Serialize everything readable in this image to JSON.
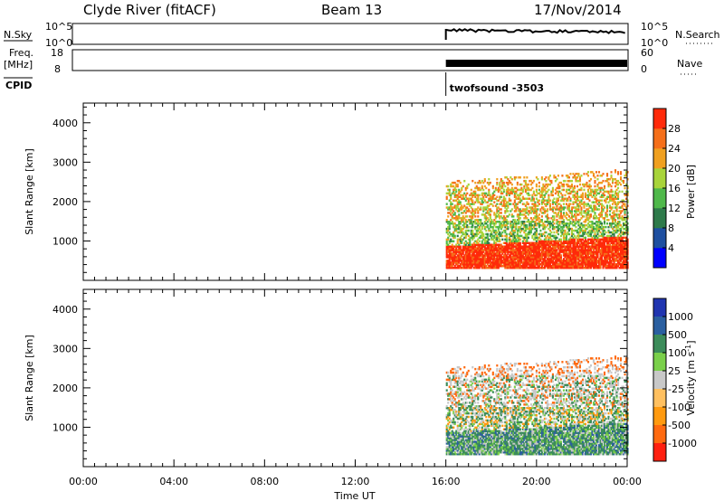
{
  "header": {
    "station": "Clyde River (fitACF)",
    "beam": "Beam 13",
    "date": "17/Nov/2014"
  },
  "panels": {
    "nsky": {
      "left_label": "N.Sky",
      "right_label": "N.Search",
      "left_ticks": [
        "10^5",
        "10^0"
      ],
      "right_ticks": [
        "10^5",
        "10^0"
      ]
    },
    "freq": {
      "left_label_1": "Freq.",
      "left_label_2": "[MHz]",
      "right_label": "Nave",
      "left_ticks": [
        "18",
        "8"
      ],
      "right_ticks": [
        "60",
        "0"
      ]
    },
    "cpid": {
      "label": "CPID",
      "program": "twofsound -3503"
    }
  },
  "colors": {
    "power_scale": [
      "#0000ff",
      "#1e4fa0",
      "#2e7a4a",
      "#4fb84a",
      "#a8d43a",
      "#f0a020",
      "#f56f1a",
      "#ff2a0a"
    ],
    "velocity_scale": [
      "#ff2010",
      "#ff6a10",
      "#ff9a10",
      "#ffc060",
      "#c8c8c8",
      "#7ad04a",
      "#3c8c5a",
      "#2a5fa0",
      "#2035b0"
    ]
  },
  "chart_data": [
    {
      "type": "heatmap",
      "name": "power",
      "xlabel": "",
      "ylabel": "Slant Range [km]",
      "xlim": [
        "00:00",
        "00:00"
      ],
      "ylim": [
        0,
        4500
      ],
      "yticks": [
        "1000",
        "2000",
        "3000",
        "4000"
      ],
      "colorbar": {
        "label": "Power [dB]",
        "ticks": [
          "4",
          "8",
          "12",
          "16",
          "20",
          "24",
          "28"
        ],
        "range": [
          0,
          32
        ]
      },
      "data_start_hour": 16,
      "data_end_hour": 24,
      "layers": [
        {
          "range_km": [
            300,
            900
          ],
          "dominant_power_db": 30
        },
        {
          "range_km": [
            900,
            1500
          ],
          "dominant_power_db": 18
        },
        {
          "range_km": [
            1500,
            2200
          ],
          "dominant_power_db": 22
        },
        {
          "range_km": [
            2200,
            2800
          ],
          "dominant_power_db": 24
        }
      ]
    },
    {
      "type": "heatmap",
      "name": "velocity",
      "xlabel": "Time UT",
      "ylabel": "Slant Range [km]",
      "xlim": [
        "00:00",
        "00:00"
      ],
      "ylim": [
        0,
        4500
      ],
      "yticks": [
        "1000",
        "2000",
        "3000",
        "4000"
      ],
      "xticks": [
        "00:00",
        "04:00",
        "08:00",
        "12:00",
        "16:00",
        "20:00",
        "00:00"
      ],
      "colorbar": {
        "label": "Velocity [m s^-1]",
        "ticks": [
          "1000",
          "500",
          "100",
          "25",
          "-25",
          "-100",
          "-500",
          "-1000"
        ]
      },
      "data_start_hour": 16,
      "data_end_hour": 24,
      "layers": [
        {
          "range_km": [
            300,
            900
          ],
          "dominant_velocity_ms": 100
        },
        {
          "range_km": [
            900,
            1500
          ],
          "dominant_velocity_ms": 60
        },
        {
          "range_km": [
            1500,
            2200
          ],
          "dominant_velocity_ms": 0
        },
        {
          "range_km": [
            2200,
            2800
          ],
          "dominant_velocity_ms": -150
        }
      ]
    }
  ]
}
